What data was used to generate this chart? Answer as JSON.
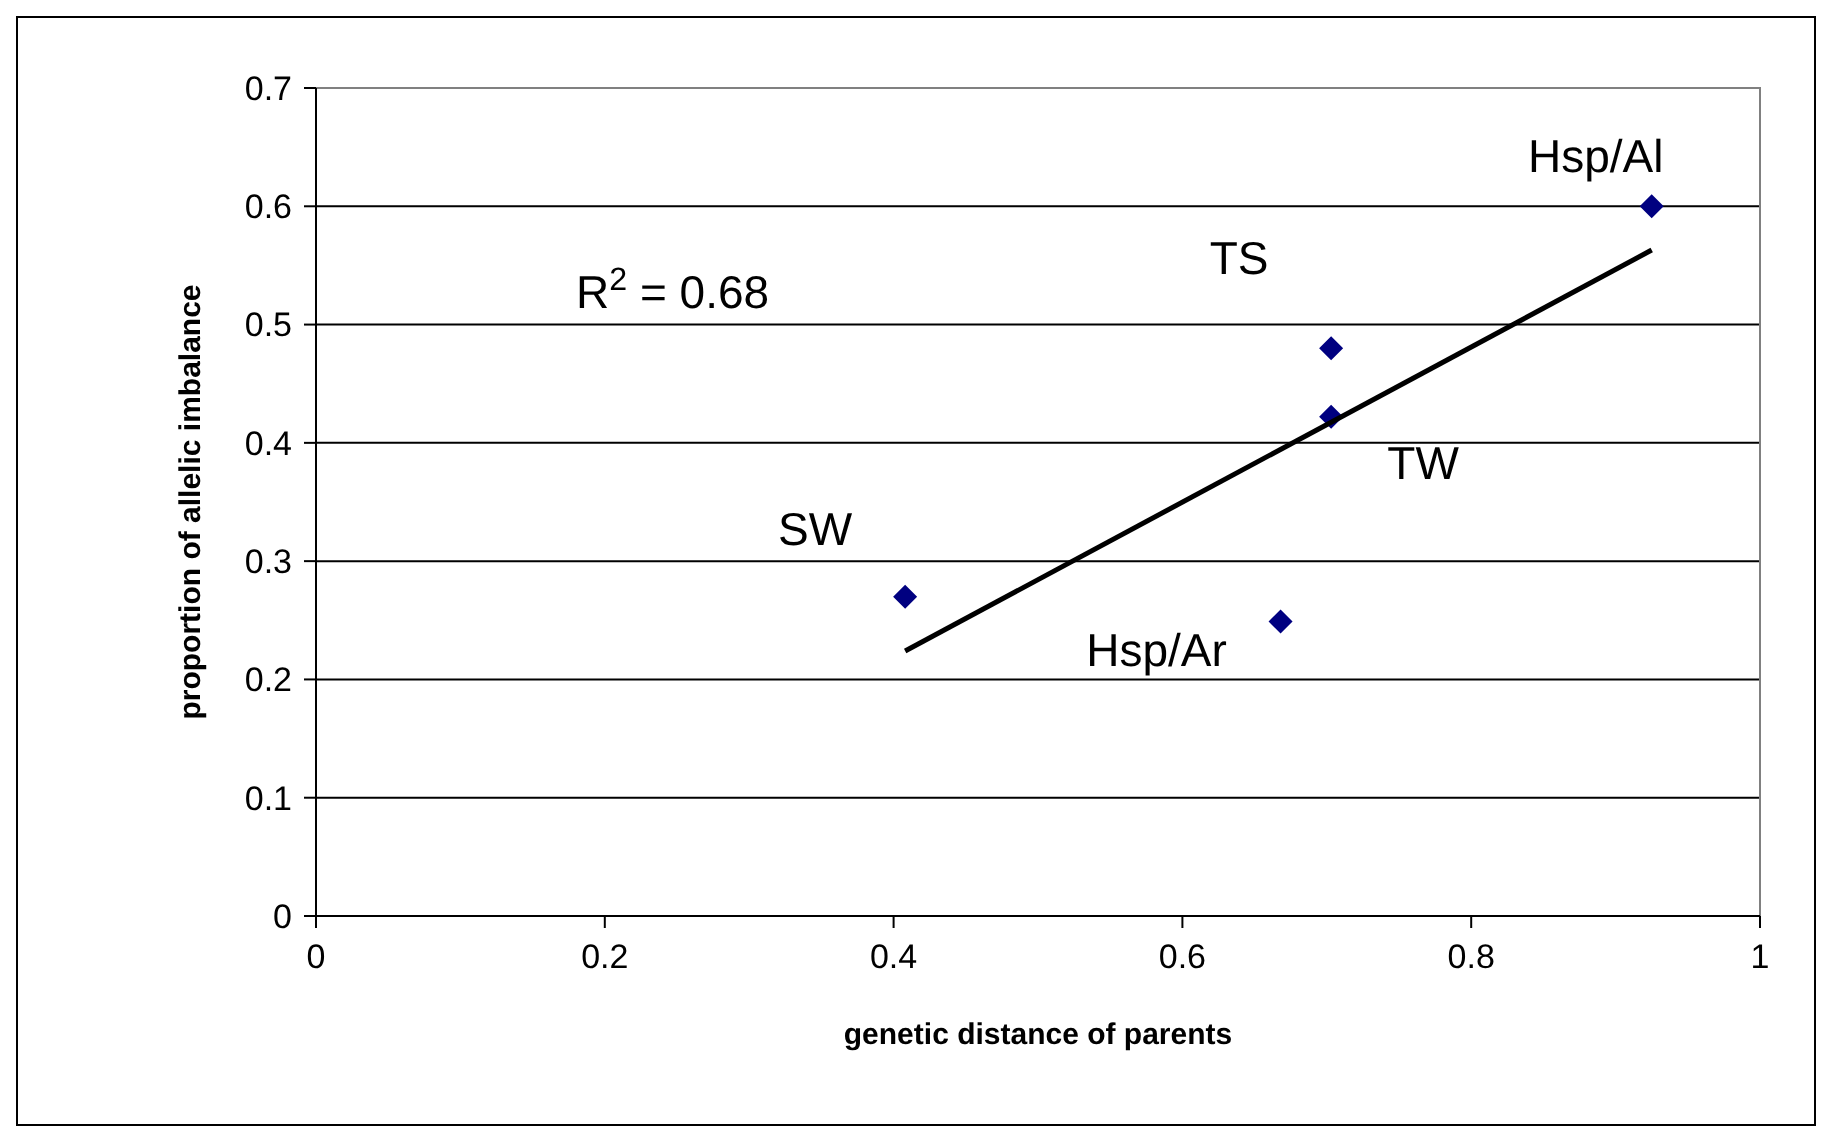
{
  "chart_data": {
    "type": "scatter",
    "xlabel": "genetic distance of parents",
    "ylabel": "proportion of allelic imbalance",
    "xlim": [
      0,
      1
    ],
    "xticks": [
      0,
      0.2,
      0.4,
      0.6,
      0.8,
      1
    ],
    "ylim": [
      0,
      0.7
    ],
    "yticks": [
      0,
      0.1,
      0.2,
      0.3,
      0.4,
      0.5,
      0.6,
      0.7
    ],
    "grid": "y",
    "series": [
      {
        "marker": "diamond",
        "color": "#000080",
        "x": [
          0.408,
          0.668,
          0.703,
          0.703,
          0.925
        ],
        "values": [
          0.27,
          0.249,
          0.48,
          0.422,
          0.6
        ]
      },
      {
        "type": "line",
        "marker": "none",
        "color": "#000000",
        "x": [
          0.408,
          0.925
        ],
        "values": [
          0.224,
          0.563
        ]
      }
    ],
    "annotations": [
      {
        "text": "SW",
        "x": 0.408,
        "y": 0.27
      },
      {
        "text": "Hsp/Ar",
        "x": 0.668,
        "y": 0.249
      },
      {
        "text": "TS",
        "x": 0.703,
        "y": 0.48
      },
      {
        "text": "TW",
        "x": 0.703,
        "y": 0.422
      },
      {
        "text": "Hsp/Al",
        "x": 0.925,
        "y": 0.6
      },
      "R$^{2}$ = 0.68"
    ]
  }
}
